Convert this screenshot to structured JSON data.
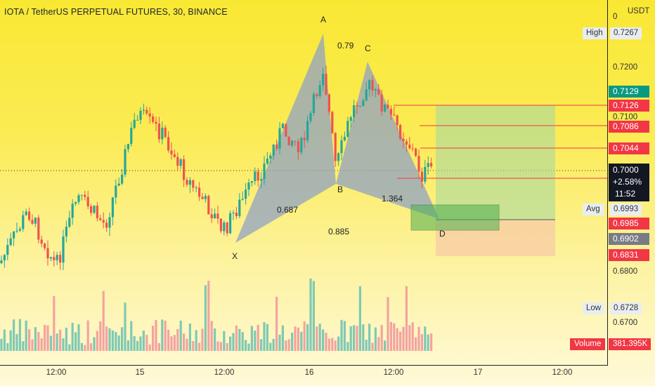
{
  "header": {
    "title": "IOTA / TetherUS PERPETUAL FUTURES, 30, BINANCE"
  },
  "price_axis": {
    "currency": "USDT",
    "top_tick": "0",
    "ticks": [
      "0.7200",
      "0.7100",
      "0.6800",
      "0.6700"
    ],
    "high_label": "High",
    "high_value": "0.7267",
    "low_label": "Low",
    "low_value": "0.6728",
    "avg_label": "Avg",
    "avg_value": "0.6993"
  },
  "price_badges": [
    {
      "value": "0.7129",
      "color": "#089981"
    },
    {
      "value": "0.7126",
      "color": "#f23645"
    },
    {
      "value": "0.7086",
      "color": "#f23645"
    },
    {
      "value": "0.7044",
      "color": "#f23645"
    },
    {
      "value": "0.6985",
      "color": "#f23645"
    },
    {
      "value": "0.6902",
      "color": "#787b86"
    },
    {
      "value": "0.6831",
      "color": "#f23645"
    }
  ],
  "current_price": {
    "value": "0.7000",
    "change": "+2.58%",
    "countdown": "11:52"
  },
  "volume": {
    "label": "Volume",
    "value": "381.395K"
  },
  "pattern": {
    "points": {
      "x": "X",
      "a": "A",
      "b": "B",
      "c": "C",
      "d": "D"
    },
    "ratios": {
      "xa_b": "0.687",
      "ab_c": "0.79",
      "bc_d": "1.364",
      "xa_d": "0.885"
    }
  },
  "time_axis": [
    "12:00",
    "15",
    "12:00",
    "16",
    "12:00",
    "17",
    "12:00"
  ],
  "colors": {
    "up": "#26a69a",
    "down": "#ef5350",
    "badge_red": "#f23645",
    "badge_green": "#089981"
  }
}
